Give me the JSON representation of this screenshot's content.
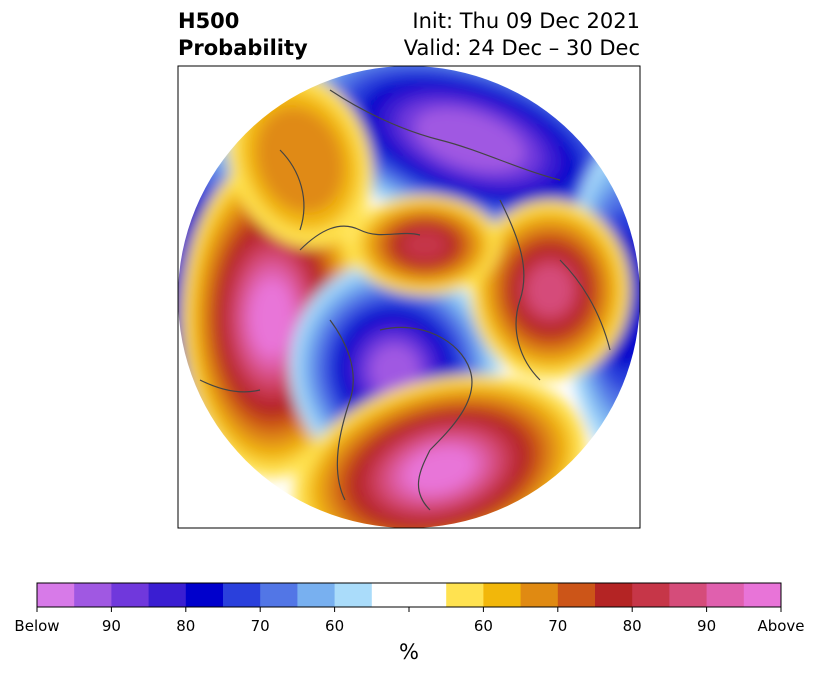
{
  "title": {
    "left_line1": "H500",
    "left_line2": "Probability",
    "right_line1": "Init: Thu 09 Dec 2021",
    "right_line2": "Valid: 24 Dec – 30 Dec"
  },
  "colorbar": {
    "unit": "%",
    "labels": [
      "Below",
      "90",
      "80",
      "70",
      "60",
      "60",
      "70",
      "80",
      "90",
      "Above"
    ],
    "colors": [
      "#d77ae8",
      "#a058e2",
      "#7038dc",
      "#3a1ed2",
      "#0000cc",
      "#2a40dc",
      "#5276e6",
      "#78b0f0",
      "#aadcfa",
      "#ffffff",
      "#ffffff",
      "#ffe250",
      "#f2b70a",
      "#e08a12",
      "#cc5518",
      "#b42424",
      "#c63648",
      "#d54c7a",
      "#e060ae",
      "#e874d8"
    ]
  },
  "map": {
    "projection": "north-polar-stereographic",
    "field": "500 hPa geopotential height anomaly probability",
    "features": [
      {
        "name": "negative-anomaly-arctic",
        "category": "Below",
        "level": "80+"
      },
      {
        "name": "positive-anomaly-gulf-of-alaska",
        "category": "Above",
        "level": "90+"
      },
      {
        "name": "negative-anomaly-western-north-america",
        "category": "Below",
        "level": "90+"
      },
      {
        "name": "positive-anomaly-southeast-us",
        "category": "Above",
        "level": "90+"
      },
      {
        "name": "positive-anomaly-siberia",
        "category": "Above",
        "level": "80+"
      }
    ]
  }
}
